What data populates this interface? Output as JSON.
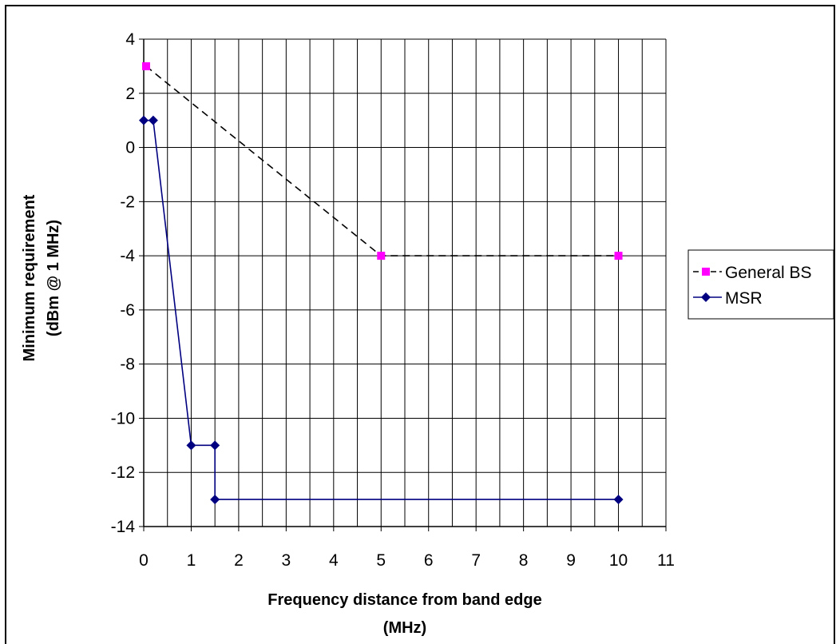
{
  "chart_data": {
    "type": "line",
    "xlabel_lines": [
      "Frequency distance from band edge",
      "(MHz)"
    ],
    "ylabel_lines": [
      "Minimum requirement",
      "(dBm @ 1 MHz)"
    ],
    "xlim": [
      0,
      11
    ],
    "ylim": [
      -14,
      4
    ],
    "x_ticks": [
      0,
      1,
      2,
      3,
      4,
      5,
      6,
      7,
      8,
      9,
      10,
      11
    ],
    "y_ticks": [
      4,
      2,
      0,
      -2,
      -4,
      -6,
      -8,
      -10,
      -12,
      -14
    ],
    "x_minor_step": 0.5,
    "grid": true,
    "legend_position": "right",
    "series": [
      {
        "name": "General BS",
        "color": "#000000",
        "marker": "square",
        "marker_color": "#ff00ff",
        "dash": true,
        "points": [
          [
            0.05,
            3
          ],
          [
            5,
            -4
          ],
          [
            10,
            -4
          ]
        ]
      },
      {
        "name": "MSR",
        "color": "#000080",
        "marker": "diamond",
        "marker_color": "#000080",
        "dash": false,
        "points": [
          [
            0,
            1
          ],
          [
            0.2,
            1
          ],
          [
            1,
            -11
          ],
          [
            1.5,
            -11
          ],
          [
            1.5,
            -13
          ],
          [
            10,
            -13
          ]
        ]
      }
    ]
  }
}
